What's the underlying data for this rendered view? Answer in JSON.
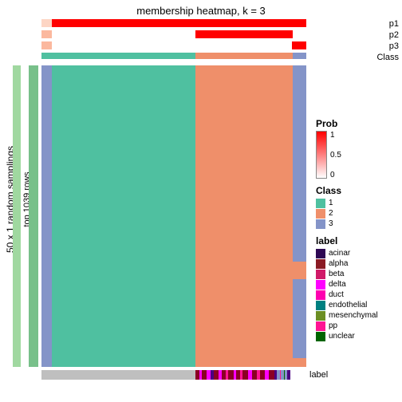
{
  "title": "membership heatmap, k = 3",
  "ylabel_outer": "50 x 1 random samplings",
  "ylabel_inner": "top 1039 rows",
  "side_strip_outer": {
    "color": "#a0d8a0"
  },
  "side_strip_inner": {
    "color": "#78c08a"
  },
  "top_strips": {
    "p1": {
      "label": "p1",
      "segments": [
        {
          "w": 0.04,
          "color": "#fdd5c4"
        },
        {
          "w": 0.54,
          "color": "#ff0000"
        },
        {
          "w": 0.37,
          "color": "#ff0000"
        },
        {
          "w": 0.05,
          "color": "#ff0000"
        }
      ]
    },
    "p2": {
      "label": "p2",
      "segments": [
        {
          "w": 0.04,
          "color": "#fbb89e"
        },
        {
          "w": 0.54,
          "color": "#ffffff"
        },
        {
          "w": 0.37,
          "color": "#ff0000"
        },
        {
          "w": 0.05,
          "color": "#ffffff"
        }
      ]
    },
    "p3": {
      "label": "p3",
      "segments": [
        {
          "w": 0.04,
          "color": "#fbb89e"
        },
        {
          "w": 0.54,
          "color": "#ffffff"
        },
        {
          "w": 0.365,
          "color": "#ffffff"
        },
        {
          "w": 0.005,
          "color": "#ff0000"
        },
        {
          "w": 0.05,
          "color": "#ff0000"
        }
      ]
    },
    "class_row": {
      "label": "Class",
      "segments": [
        {
          "w": 0.04,
          "color": "#4fc0a0"
        },
        {
          "w": 0.54,
          "color": "#4fc0a0"
        },
        {
          "w": 0.37,
          "color": "#ef8f6a"
        },
        {
          "w": 0.05,
          "color": "#8494c8"
        }
      ]
    }
  },
  "heat": {
    "columns": [
      {
        "w": 0.04,
        "color": "#8494c8"
      },
      {
        "w": 0.54,
        "color": "#4fc0a0"
      },
      {
        "w": 0.37,
        "color": "#ef8f6a"
      },
      {
        "w": 0.05,
        "color": "#8494c8"
      }
    ],
    "edge_overlay": {
      "color": "#ef8f6a"
    }
  },
  "bottom_strip": {
    "label": "label",
    "segments": [
      {
        "w": 0.58,
        "color": "#bfbfbf"
      },
      {
        "w": 0.015,
        "color": "#8b0024"
      },
      {
        "w": 0.01,
        "color": "#ff00ff"
      },
      {
        "w": 0.02,
        "color": "#8b0024"
      },
      {
        "w": 0.015,
        "color": "#ff00ff"
      },
      {
        "w": 0.01,
        "color": "#4b0082"
      },
      {
        "w": 0.02,
        "color": "#8b0024"
      },
      {
        "w": 0.01,
        "color": "#ff00ff"
      },
      {
        "w": 0.015,
        "color": "#8b0024"
      },
      {
        "w": 0.01,
        "color": "#ff1493"
      },
      {
        "w": 0.02,
        "color": "#8b0024"
      },
      {
        "w": 0.01,
        "color": "#ff00ff"
      },
      {
        "w": 0.015,
        "color": "#8b0024"
      },
      {
        "w": 0.01,
        "color": "#ff1493"
      },
      {
        "w": 0.02,
        "color": "#8b0024"
      },
      {
        "w": 0.015,
        "color": "#ff00ff"
      },
      {
        "w": 0.02,
        "color": "#8b0024"
      },
      {
        "w": 0.01,
        "color": "#ff1493"
      },
      {
        "w": 0.02,
        "color": "#8b0024"
      },
      {
        "w": 0.015,
        "color": "#ff00ff"
      },
      {
        "w": 0.02,
        "color": "#8b0024"
      },
      {
        "w": 0.01,
        "color": "#4b0082"
      },
      {
        "w": 0.01,
        "color": "#8494c8"
      },
      {
        "w": 0.005,
        "color": "#ff1493"
      },
      {
        "w": 0.01,
        "color": "#8494c8"
      },
      {
        "w": 0.005,
        "color": "#006400"
      },
      {
        "w": 0.01,
        "color": "#8494c8"
      },
      {
        "w": 0.01,
        "color": "#4b0082"
      }
    ]
  },
  "legend": {
    "prob": {
      "title": "Prob",
      "ticks": [
        {
          "pos": 0,
          "label": "1"
        },
        {
          "pos": 0.5,
          "label": "0.5"
        },
        {
          "pos": 1,
          "label": "0"
        }
      ]
    },
    "class": {
      "title": "Class",
      "items": [
        {
          "color": "#4fc0a0",
          "label": "1"
        },
        {
          "color": "#ef8f6a",
          "label": "2"
        },
        {
          "color": "#8494c8",
          "label": "3"
        }
      ]
    },
    "label": {
      "title": "label",
      "items": [
        {
          "color": "#2e0854",
          "label": "acinar"
        },
        {
          "color": "#8b1a24",
          "label": "alpha"
        },
        {
          "color": "#d01968",
          "label": "beta"
        },
        {
          "color": "#ff00ff",
          "label": "delta"
        },
        {
          "color": "#ff00b0",
          "label": "duct"
        },
        {
          "color": "#008080",
          "label": "endothelial"
        },
        {
          "color": "#6b8e23",
          "label": "mesenchymal"
        },
        {
          "color": "#ff1493",
          "label": "pp"
        },
        {
          "color": "#006400",
          "label": "unclear"
        }
      ]
    }
  }
}
